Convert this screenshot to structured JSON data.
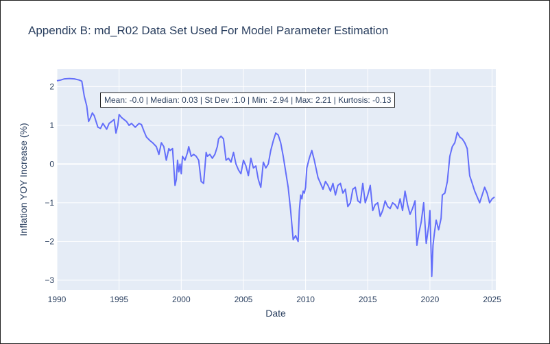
{
  "chart_data": {
    "type": "line",
    "title": "Appendix B: md_R02 Data Set Used For Model Parameter Estimation",
    "xlabel": "Date",
    "ylabel": "Inflation YOY Increase (%)",
    "xlim": [
      1990.0,
      2025.3
    ],
    "ylim": [
      -3.25,
      2.45
    ],
    "x_ticks": [
      1990,
      1995,
      2000,
      2005,
      2010,
      2015,
      2020,
      2025
    ],
    "y_ticks": [
      2,
      1,
      0,
      -1,
      -2,
      -3
    ],
    "y_tick_labels": [
      "2",
      "1",
      "0",
      "−1",
      "−2",
      "−3"
    ],
    "grid": true,
    "line_color": "#636efa",
    "plot_background": "#e5ecf6",
    "annotation": "Mean: -0.0 | Median: 0.03 | St Dev :1.0 | Min: -2.94 | Max: 2.21 | Kurtosis: -0.13",
    "series": [
      {
        "x": [
          1990.0,
          1990.3,
          1990.6,
          1991.0,
          1991.4,
          1991.8,
          1992.0,
          1992.2,
          1992.4,
          1992.55,
          1992.7,
          1992.85,
          1993.0,
          1993.15,
          1993.3,
          1993.5,
          1993.7,
          1993.9,
          1994.0,
          1994.2,
          1994.4,
          1994.6,
          1994.75,
          1994.9,
          1995.0,
          1995.2,
          1995.4,
          1995.6,
          1995.8,
          1996.0,
          1996.3,
          1996.6,
          1996.8,
          1997.0,
          1997.2,
          1997.5,
          1997.7,
          1998.0,
          1998.2,
          1998.4,
          1998.6,
          1998.8,
          1999.0,
          1999.1,
          1999.3,
          1999.5,
          1999.6,
          1999.7,
          1999.8,
          1999.9,
          2000.0,
          2000.1,
          2000.3,
          2000.5,
          2000.6,
          2000.8,
          2001.0,
          2001.2,
          2001.4,
          2001.6,
          2001.8,
          2002.0,
          2002.1,
          2002.3,
          2002.5,
          2002.7,
          2002.9,
          2003.0,
          2003.2,
          2003.4,
          2003.6,
          2003.8,
          2004.0,
          2004.2,
          2004.4,
          2004.6,
          2004.8,
          2005.0,
          2005.2,
          2005.4,
          2005.6,
          2005.8,
          2006.0,
          2006.2,
          2006.4,
          2006.6,
          2006.8,
          2007.0,
          2007.2,
          2007.4,
          2007.6,
          2007.8,
          2008.0,
          2008.2,
          2008.4,
          2008.6,
          2008.8,
          2009.0,
          2009.2,
          2009.4,
          2009.5,
          2009.6,
          2009.7,
          2009.8,
          2009.9,
          2010.0,
          2010.1,
          2010.3,
          2010.5,
          2010.7,
          2010.9,
          2011.0,
          2011.2,
          2011.4,
          2011.6,
          2011.8,
          2012.0,
          2012.2,
          2012.4,
          2012.6,
          2012.8,
          2013.0,
          2013.2,
          2013.4,
          2013.6,
          2013.8,
          2014.0,
          2014.2,
          2014.4,
          2014.6,
          2014.8,
          2015.0,
          2015.2,
          2015.4,
          2015.6,
          2015.8,
          2016.0,
          2016.2,
          2016.4,
          2016.6,
          2016.8,
          2017.0,
          2017.2,
          2017.4,
          2017.6,
          2017.8,
          2018.0,
          2018.2,
          2018.4,
          2018.6,
          2018.8,
          2018.95,
          2019.1,
          2019.3,
          2019.5,
          2019.7,
          2019.9,
          2020.0,
          2020.15,
          2020.25,
          2020.35,
          2020.5,
          2020.7,
          2020.9,
          2021.0,
          2021.2,
          2021.4,
          2021.6,
          2021.8,
          2022.0,
          2022.2,
          2022.4,
          2022.6,
          2022.8,
          2023.0,
          2023.2,
          2023.4,
          2023.6,
          2023.8,
          2024.0,
          2024.2,
          2024.4,
          2024.6,
          2024.8,
          2025.0,
          2025.2
        ],
        "y": [
          2.15,
          2.17,
          2.2,
          2.21,
          2.2,
          2.17,
          2.14,
          1.75,
          1.5,
          1.1,
          1.2,
          1.32,
          1.25,
          1.1,
          0.95,
          0.92,
          1.05,
          0.95,
          0.9,
          1.05,
          1.1,
          1.15,
          0.8,
          1.0,
          1.28,
          1.2,
          1.15,
          1.1,
          1.0,
          1.05,
          0.95,
          1.05,
          1.02,
          0.85,
          0.7,
          0.6,
          0.55,
          0.45,
          0.25,
          0.55,
          0.45,
          0.1,
          0.4,
          0.35,
          0.4,
          -0.55,
          -0.4,
          0.1,
          -0.2,
          0.0,
          -0.25,
          0.2,
          0.1,
          0.3,
          0.45,
          0.2,
          0.25,
          0.2,
          0.1,
          -0.45,
          -0.5,
          0.3,
          0.2,
          0.25,
          0.15,
          0.25,
          0.45,
          0.65,
          0.72,
          0.65,
          0.1,
          0.15,
          0.05,
          0.3,
          0.0,
          -0.15,
          -0.25,
          0.1,
          -0.05,
          -0.3,
          0.15,
          -0.1,
          -0.05,
          -0.4,
          -0.6,
          0.05,
          -0.1,
          0.0,
          0.35,
          0.6,
          0.8,
          0.75,
          0.55,
          0.2,
          -0.2,
          -0.6,
          -1.2,
          -1.95,
          -1.85,
          -2.0,
          -1.2,
          -0.8,
          -0.9,
          -0.7,
          -0.75,
          -0.6,
          -0.1,
          0.15,
          0.35,
          0.1,
          -0.2,
          -0.35,
          -0.5,
          -0.65,
          -0.45,
          -0.55,
          -0.7,
          -0.5,
          -0.8,
          -0.55,
          -0.5,
          -0.75,
          -0.65,
          -1.1,
          -1.0,
          -0.65,
          -0.6,
          -0.95,
          -1.0,
          -0.5,
          -1.0,
          -0.8,
          -0.55,
          -1.2,
          -1.05,
          -1.0,
          -1.35,
          -1.2,
          -0.95,
          -1.1,
          -1.15,
          -1.0,
          -1.05,
          -1.15,
          -0.9,
          -1.2,
          -0.7,
          -1.05,
          -1.3,
          -1.15,
          -0.95,
          -2.1,
          -1.8,
          -1.5,
          -1.0,
          -2.05,
          -1.6,
          -1.2,
          -2.9,
          -2.1,
          -1.8,
          -1.45,
          -1.7,
          -1.4,
          -0.8,
          -0.75,
          -0.45,
          0.2,
          0.45,
          0.55,
          0.82,
          0.7,
          0.65,
          0.55,
          0.4,
          -0.3,
          -0.5,
          -0.7,
          -0.85,
          -1.0,
          -0.8,
          -0.6,
          -0.75,
          -1.0,
          -0.9,
          -0.85
        ]
      }
    ]
  }
}
